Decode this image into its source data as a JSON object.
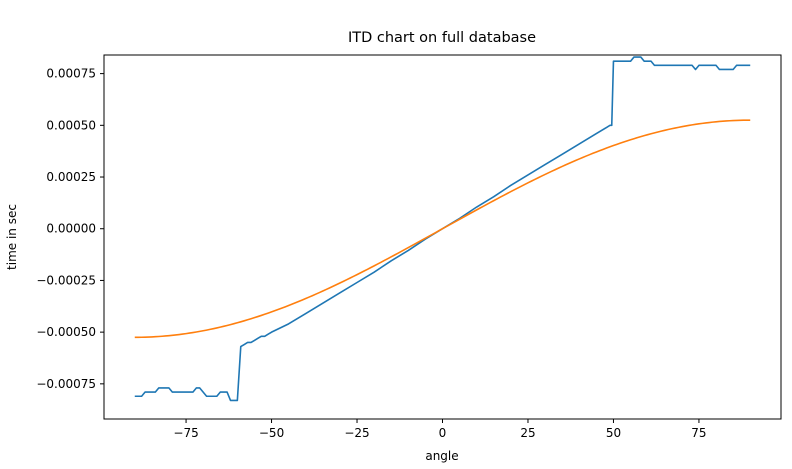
{
  "chart_data": {
    "type": "line",
    "title": "ITD chart on full database",
    "xlabel": "angle",
    "ylabel": "time in sec",
    "xlim": [
      -99,
      99
    ],
    "ylim": [
      -0.00092,
      0.00084
    ],
    "x_ticks": [
      -75,
      -50,
      -25,
      0,
      25,
      50,
      75
    ],
    "x_tick_labels": [
      "−75",
      "−50",
      "−25",
      "0",
      "25",
      "50",
      "75"
    ],
    "y_ticks": [
      -0.00075,
      -0.0005,
      -0.00025,
      0,
      0.00025,
      0.0005,
      0.00075
    ],
    "y_tick_labels": [
      "−0.00075",
      "−0.00050",
      "−0.00025",
      "0.00000",
      "0.00025",
      "0.00050",
      "0.00075"
    ],
    "grid": false,
    "legend": "none",
    "series": [
      {
        "color": "#1f77b4",
        "points": [
          [
            -90,
            -0.00081
          ],
          [
            -88,
            -0.00081
          ],
          [
            -87,
            -0.00079
          ],
          [
            -84,
            -0.00079
          ],
          [
            -83,
            -0.00077
          ],
          [
            -80,
            -0.00077
          ],
          [
            -79,
            -0.00079
          ],
          [
            -73,
            -0.00079
          ],
          [
            -72,
            -0.00077
          ],
          [
            -71,
            -0.00077
          ],
          [
            -69,
            -0.00081
          ],
          [
            -66,
            -0.00081
          ],
          [
            -65,
            -0.00079
          ],
          [
            -63,
            -0.00079
          ],
          [
            -62,
            -0.00083
          ],
          [
            -60,
            -0.00083
          ],
          [
            -59,
            -0.00057
          ],
          [
            -58,
            -0.00056
          ],
          [
            -57,
            -0.00055
          ],
          [
            -56,
            -0.00055
          ],
          [
            -55,
            -0.00054
          ],
          [
            -54,
            -0.00053
          ],
          [
            -53,
            -0.00052
          ],
          [
            -52,
            -0.00052
          ],
          [
            -51,
            -0.00051
          ],
          [
            -50,
            -0.0005
          ],
          [
            -45,
            -0.00046
          ],
          [
            -40,
            -0.00041
          ],
          [
            -35,
            -0.00036
          ],
          [
            -30,
            -0.00031
          ],
          [
            -25,
            -0.00026
          ],
          [
            -20,
            -0.00021
          ],
          [
            -15,
            -0.000155
          ],
          [
            -10,
            -0.000105
          ],
          [
            -5,
            -5e-05
          ],
          [
            0,
            0
          ],
          [
            5,
            5e-05
          ],
          [
            10,
            0.000105
          ],
          [
            15,
            0.000155
          ],
          [
            20,
            0.00021
          ],
          [
            25,
            0.00026
          ],
          [
            30,
            0.00031
          ],
          [
            35,
            0.00036
          ],
          [
            40,
            0.00041
          ],
          [
            45,
            0.00046
          ],
          [
            48,
            0.00049
          ],
          [
            49,
            0.0005
          ],
          [
            49.5,
            0.0005
          ],
          [
            50,
            0.00081
          ],
          [
            55,
            0.00081
          ],
          [
            56,
            0.00083
          ],
          [
            58,
            0.00083
          ],
          [
            59,
            0.00081
          ],
          [
            61,
            0.00081
          ],
          [
            62,
            0.00079
          ],
          [
            73,
            0.00079
          ],
          [
            74,
            0.00077
          ],
          [
            75,
            0.00079
          ],
          [
            80,
            0.00079
          ],
          [
            81,
            0.00077
          ],
          [
            85,
            0.00077
          ],
          [
            86,
            0.00079
          ],
          [
            90,
            0.00079
          ]
        ]
      },
      {
        "color": "#ff7f0e",
        "function": "0.000525*sin(angle)",
        "x_range": [
          -90,
          90
        ],
        "step": 1
      }
    ]
  }
}
